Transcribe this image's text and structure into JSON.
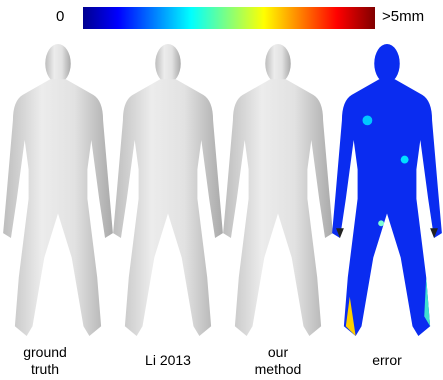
{
  "colorbar": {
    "min_label": "0",
    "max_label": ">5mm"
  },
  "panels": [
    {
      "caption": "ground truth"
    },
    {
      "caption": "Li 2013"
    },
    {
      "caption": "our method"
    },
    {
      "caption": "error"
    }
  ]
}
